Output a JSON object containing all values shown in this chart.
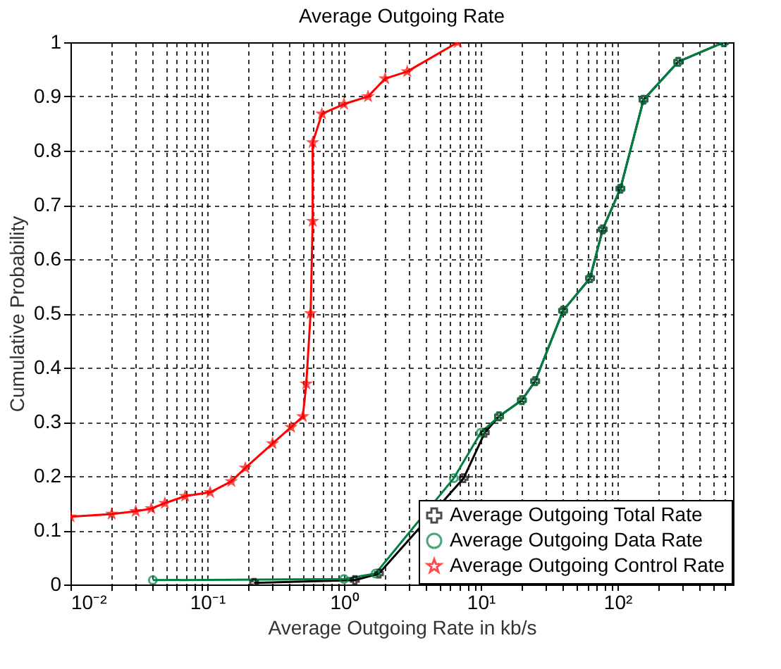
{
  "chart_data": {
    "type": "line",
    "title": "Average Outgoing Rate",
    "xlabel": "Average Outgoing Rate in kb/s",
    "ylabel": "Cumulative Probability",
    "log": "x",
    "grid": true,
    "legend": "bottom right",
    "line_style": "solid",
    "xlim": [
      0.01,
      700
    ],
    "ylim": [
      0,
      1
    ],
    "xticks": [
      {
        "value": 0.01,
        "label": "10⁻²"
      },
      {
        "value": 0.02,
        "label": null
      },
      {
        "value": 0.03,
        "label": null
      },
      {
        "value": 0.04,
        "label": null
      },
      {
        "value": 0.05,
        "label": null
      },
      {
        "value": 0.06,
        "label": null
      },
      {
        "value": 0.07,
        "label": null
      },
      {
        "value": 0.08,
        "label": null
      },
      {
        "value": 0.09,
        "label": null
      },
      {
        "value": 0.1,
        "label": "10⁻¹"
      },
      {
        "value": 0.2,
        "label": null
      },
      {
        "value": 0.3,
        "label": null
      },
      {
        "value": 0.4,
        "label": null
      },
      {
        "value": 0.5,
        "label": null
      },
      {
        "value": 0.6,
        "label": null
      },
      {
        "value": 0.7,
        "label": null
      },
      {
        "value": 0.8,
        "label": null
      },
      {
        "value": 0.9,
        "label": null
      },
      {
        "value": 1,
        "label": "10⁰"
      },
      {
        "value": 2,
        "label": null
      },
      {
        "value": 3,
        "label": null
      },
      {
        "value": 4,
        "label": null
      },
      {
        "value": 5,
        "label": null
      },
      {
        "value": 6,
        "label": null
      },
      {
        "value": 7,
        "label": null
      },
      {
        "value": 8,
        "label": null
      },
      {
        "value": 9,
        "label": null
      },
      {
        "value": 10,
        "label": "10¹"
      },
      {
        "value": 20,
        "label": null
      },
      {
        "value": 30,
        "label": null
      },
      {
        "value": 40,
        "label": null
      },
      {
        "value": 50,
        "label": null
      },
      {
        "value": 60,
        "label": null
      },
      {
        "value": 70,
        "label": null
      },
      {
        "value": 80,
        "label": null
      },
      {
        "value": 90,
        "label": null
      },
      {
        "value": 100,
        "label": "10²"
      },
      {
        "value": 200,
        "label": null
      },
      {
        "value": 300,
        "label": null
      },
      {
        "value": 400,
        "label": null
      },
      {
        "value": 500,
        "label": null
      },
      {
        "value": 600,
        "label": null
      }
    ],
    "yticks": [
      0,
      0.1,
      0.2,
      0.3,
      0.4,
      0.5,
      0.6,
      0.7,
      0.8,
      0.9,
      1
    ],
    "series": [
      {
        "name": "Average Outgoing Total Rate",
        "color": "#000000",
        "marker": "cross",
        "x": [
          0.22,
          1.2,
          1.8,
          7.5,
          10.7,
          13.6,
          20,
          25,
          40,
          63,
          78,
          105,
          155,
          278,
          600
        ],
        "values": [
          0.003,
          0.008,
          0.02,
          0.196,
          0.28,
          0.31,
          0.34,
          0.375,
          0.505,
          0.565,
          0.655,
          0.73,
          0.894,
          0.964,
          1.0
        ]
      },
      {
        "name": "Average Outgoing Data Rate",
        "color": "#008040",
        "marker": "circle",
        "x": [
          0.04,
          1.0,
          1.7,
          6.35,
          10,
          13.6,
          20,
          25,
          40,
          63,
          78,
          105,
          155,
          278,
          600
        ],
        "values": [
          0.008,
          0.01,
          0.02,
          0.196,
          0.28,
          0.31,
          0.34,
          0.375,
          0.505,
          0.565,
          0.655,
          0.73,
          0.894,
          0.964,
          1.0
        ]
      },
      {
        "name": "Average Outgoing Control Rate",
        "color": "#ff0000",
        "marker": "star",
        "x": [
          0.01,
          0.02,
          0.03,
          0.039,
          0.049,
          0.069,
          0.105,
          0.15,
          0.19,
          0.3,
          0.41,
          0.5,
          0.53,
          0.57,
          0.59,
          0.59,
          0.69,
          1.0,
          1.5,
          2.0,
          2.9,
          6.8
        ],
        "values": [
          0.125,
          0.13,
          0.135,
          0.14,
          0.15,
          0.163,
          0.17,
          0.19,
          0.215,
          0.26,
          0.29,
          0.31,
          0.37,
          0.5,
          0.67,
          0.815,
          0.868,
          0.886,
          0.9,
          0.933,
          0.946,
          1.0
        ]
      }
    ]
  }
}
